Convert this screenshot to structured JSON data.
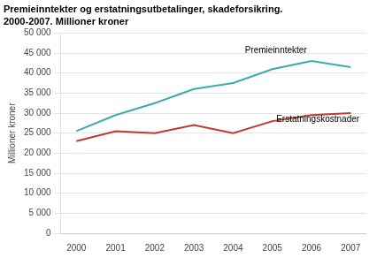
{
  "chart_data": {
    "type": "line",
    "title": "Premieinntekter og erstatningsutbetalinger, skadeforsikring.",
    "subtitle": "2000-2007. Millioner kroner",
    "ylabel": "Millioner kroner",
    "x": [
      2000,
      2001,
      2002,
      2003,
      2004,
      2005,
      2006,
      2007
    ],
    "series": [
      {
        "color": "#3aada8",
        "values": [
          25500,
          29500,
          32500,
          36000,
          37500,
          41000,
          43000,
          41500
        ]
      },
      {
        "color": "#c0392b",
        "values": [
          23000,
          25500,
          25000,
          27000,
          25000,
          28000,
          29500,
          30000
        ]
      }
    ],
    "annotations": [
      {
        "text": "Premieinntekter",
        "x": 2004.3,
        "y": 44500
      },
      {
        "text": "Erstatningskostnader",
        "x": 2005.1,
        "y": 27200
      }
    ],
    "xlim": [
      1999.6,
      2007.4
    ],
    "xticks": [
      2000,
      2001,
      2002,
      2003,
      2004,
      2005,
      2006,
      2007
    ],
    "ylim": [
      0,
      50000
    ],
    "yticks": [
      0,
      {
        "value": 5000,
        "label": "5 000"
      },
      {
        "value": 10000,
        "label": "10 000"
      },
      {
        "value": 15000,
        "label": "15 000"
      },
      {
        "value": 20000,
        "label": "20 000"
      },
      {
        "value": 25000,
        "label": "25 000"
      },
      {
        "value": 30000,
        "label": "30 000"
      },
      {
        "value": 35000,
        "label": "35 000"
      },
      {
        "value": 40000,
        "label": "40 000"
      },
      {
        "value": 45000,
        "label": "45 000"
      },
      {
        "value": 50000,
        "label": "50 000"
      }
    ],
    "grid": true
  }
}
